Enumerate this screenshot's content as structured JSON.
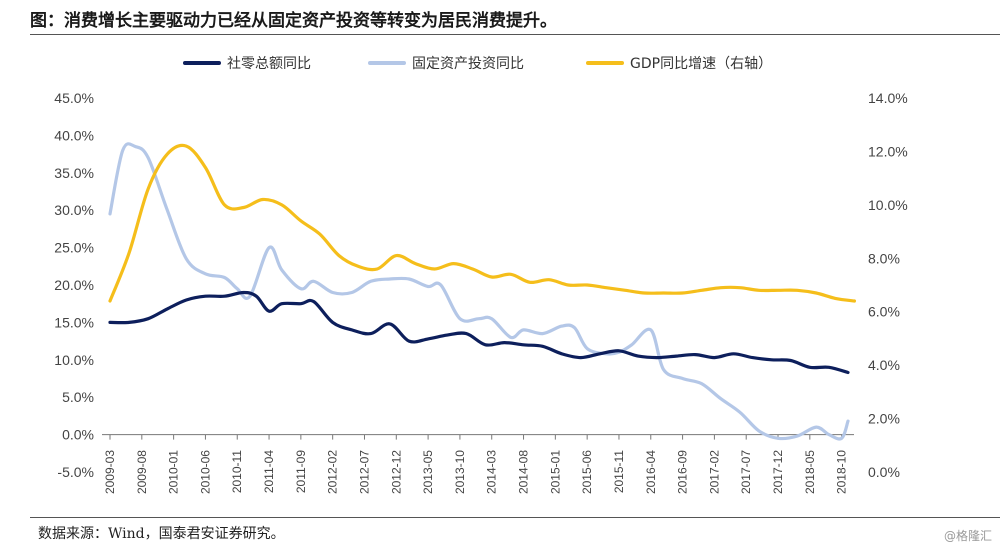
{
  "title": "图：消费增长主要驱动力已经从固定资产投资等转变为居民消费提升。",
  "source": "数据来源：Wind，国泰君安证券研究。",
  "watermark": "@格隆汇",
  "chart_data": {
    "type": "line",
    "legend_position": "top-center",
    "grid": false,
    "y_left": {
      "lim": [
        -5,
        45
      ],
      "ticks": [
        -5,
        0,
        5,
        10,
        15,
        20,
        25,
        30,
        35,
        40,
        45
      ],
      "tick_labels": [
        "-5.0%",
        "0.0%",
        "5.0%",
        "10.0%",
        "15.0%",
        "20.0%",
        "25.0%",
        "30.0%",
        "35.0%",
        "40.0%",
        "45.0%"
      ]
    },
    "y_right": {
      "lim": [
        0,
        14
      ],
      "ticks": [
        0,
        2,
        4,
        6,
        8,
        10,
        12,
        14
      ],
      "tick_labels": [
        "0.0%",
        "2.0%",
        "4.0%",
        "6.0%",
        "8.0%",
        "10.0%",
        "12.0%",
        "14.0%"
      ]
    },
    "x_tick_labels": [
      "2009-03",
      "2009-08",
      "2010-01",
      "2010-06",
      "2010-11",
      "2011-04",
      "2011-09",
      "2012-02",
      "2012-07",
      "2012-12",
      "2013-05",
      "2013-10",
      "2014-03",
      "2014-08",
      "2015-01",
      "2015-06",
      "2015-11",
      "2016-04",
      "2016-09",
      "2017-02",
      "2017-07",
      "2017-12",
      "2018-05",
      "2018-10"
    ],
    "series": [
      {
        "name": "社零总额同比",
        "axis": "left",
        "color": "#0d1f5c",
        "points": [
          [
            "2009-03",
            15.0
          ],
          [
            "2009-06",
            15.0
          ],
          [
            "2009-09",
            15.5
          ],
          [
            "2009-12",
            16.8
          ],
          [
            "2010-03",
            18.0
          ],
          [
            "2010-06",
            18.5
          ],
          [
            "2010-09",
            18.5
          ],
          [
            "2010-12",
            19.0
          ],
          [
            "2011-02",
            18.5
          ],
          [
            "2011-04",
            16.5
          ],
          [
            "2011-06",
            17.5
          ],
          [
            "2011-09",
            17.5
          ],
          [
            "2011-11",
            17.8
          ],
          [
            "2012-02",
            15.0
          ],
          [
            "2012-05",
            14.0
          ],
          [
            "2012-08",
            13.5
          ],
          [
            "2012-11",
            14.8
          ],
          [
            "2013-02",
            12.5
          ],
          [
            "2013-05",
            12.8
          ],
          [
            "2013-08",
            13.3
          ],
          [
            "2013-11",
            13.5
          ],
          [
            "2014-02",
            12.0
          ],
          [
            "2014-05",
            12.3
          ],
          [
            "2014-08",
            12.0
          ],
          [
            "2014-11",
            11.8
          ],
          [
            "2015-02",
            10.8
          ],
          [
            "2015-05",
            10.3
          ],
          [
            "2015-08",
            10.8
          ],
          [
            "2015-11",
            11.2
          ],
          [
            "2016-02",
            10.5
          ],
          [
            "2016-05",
            10.3
          ],
          [
            "2016-08",
            10.5
          ],
          [
            "2016-11",
            10.7
          ],
          [
            "2017-02",
            10.3
          ],
          [
            "2017-05",
            10.8
          ],
          [
            "2017-08",
            10.3
          ],
          [
            "2017-11",
            10.0
          ],
          [
            "2018-02",
            9.9
          ],
          [
            "2018-05",
            9.0
          ],
          [
            "2018-08",
            9.0
          ],
          [
            "2018-11",
            8.3
          ]
        ]
      },
      {
        "name": "固定资产投资同比",
        "axis": "left",
        "color": "#b4c7e7",
        "points": [
          [
            "2009-03",
            29.5
          ],
          [
            "2009-05",
            38.0
          ],
          [
            "2009-07",
            38.5
          ],
          [
            "2009-09",
            37.0
          ],
          [
            "2009-12",
            30.0
          ],
          [
            "2010-03",
            23.5
          ],
          [
            "2010-06",
            21.5
          ],
          [
            "2010-09",
            21.0
          ],
          [
            "2010-11",
            19.5
          ],
          [
            "2011-01",
            18.5
          ],
          [
            "2011-04",
            25.0
          ],
          [
            "2011-06",
            22.0
          ],
          [
            "2011-09",
            19.5
          ],
          [
            "2011-11",
            20.5
          ],
          [
            "2012-02",
            19.0
          ],
          [
            "2012-05",
            19.0
          ],
          [
            "2012-08",
            20.5
          ],
          [
            "2012-11",
            20.8
          ],
          [
            "2013-02",
            20.8
          ],
          [
            "2013-05",
            19.8
          ],
          [
            "2013-07",
            20.0
          ],
          [
            "2013-10",
            15.5
          ],
          [
            "2014-01",
            15.5
          ],
          [
            "2014-03",
            15.5
          ],
          [
            "2014-06",
            13.0
          ],
          [
            "2014-08",
            14.0
          ],
          [
            "2014-11",
            13.5
          ],
          [
            "2015-02",
            14.5
          ],
          [
            "2015-04",
            14.3
          ],
          [
            "2015-06",
            11.5
          ],
          [
            "2015-09",
            10.8
          ],
          [
            "2015-11",
            11.0
          ],
          [
            "2016-01",
            12.0
          ],
          [
            "2016-04",
            14.0
          ],
          [
            "2016-06",
            8.7
          ],
          [
            "2016-09",
            7.5
          ],
          [
            "2016-12",
            6.8
          ],
          [
            "2017-03",
            4.8
          ],
          [
            "2017-06",
            3.0
          ],
          [
            "2017-09",
            0.5
          ],
          [
            "2017-12",
            -0.5
          ],
          [
            "2018-03",
            -0.2
          ],
          [
            "2018-06",
            1.0
          ],
          [
            "2018-08",
            0.0
          ],
          [
            "2018-10",
            -0.5
          ],
          [
            "2018-11",
            1.8
          ]
        ]
      },
      {
        "name": "GDP同比增速（右轴）",
        "axis": "right",
        "color": "#f5be1b",
        "points": [
          [
            "2009-03",
            6.4
          ],
          [
            "2009-06",
            8.2
          ],
          [
            "2009-09",
            10.6
          ],
          [
            "2009-12",
            11.9
          ],
          [
            "2010-03",
            12.2
          ],
          [
            "2010-06",
            11.4
          ],
          [
            "2010-09",
            10.0
          ],
          [
            "2010-12",
            9.9
          ],
          [
            "2011-03",
            10.2
          ],
          [
            "2011-06",
            10.0
          ],
          [
            "2011-09",
            9.4
          ],
          [
            "2011-12",
            8.9
          ],
          [
            "2012-03",
            8.1
          ],
          [
            "2012-06",
            7.7
          ],
          [
            "2012-09",
            7.6
          ],
          [
            "2012-12",
            8.1
          ],
          [
            "2013-03",
            7.8
          ],
          [
            "2013-06",
            7.6
          ],
          [
            "2013-09",
            7.8
          ],
          [
            "2013-12",
            7.6
          ],
          [
            "2014-03",
            7.3
          ],
          [
            "2014-06",
            7.4
          ],
          [
            "2014-09",
            7.1
          ],
          [
            "2014-12",
            7.2
          ],
          [
            "2015-03",
            7.0
          ],
          [
            "2015-06",
            7.0
          ],
          [
            "2015-09",
            6.9
          ],
          [
            "2015-12",
            6.8
          ],
          [
            "2016-03",
            6.7
          ],
          [
            "2016-06",
            6.7
          ],
          [
            "2016-09",
            6.7
          ],
          [
            "2016-12",
            6.8
          ],
          [
            "2017-03",
            6.9
          ],
          [
            "2017-06",
            6.9
          ],
          [
            "2017-09",
            6.8
          ],
          [
            "2017-12",
            6.8
          ],
          [
            "2018-03",
            6.8
          ],
          [
            "2018-06",
            6.7
          ],
          [
            "2018-09",
            6.5
          ],
          [
            "2018-12",
            6.4
          ]
        ]
      }
    ]
  }
}
